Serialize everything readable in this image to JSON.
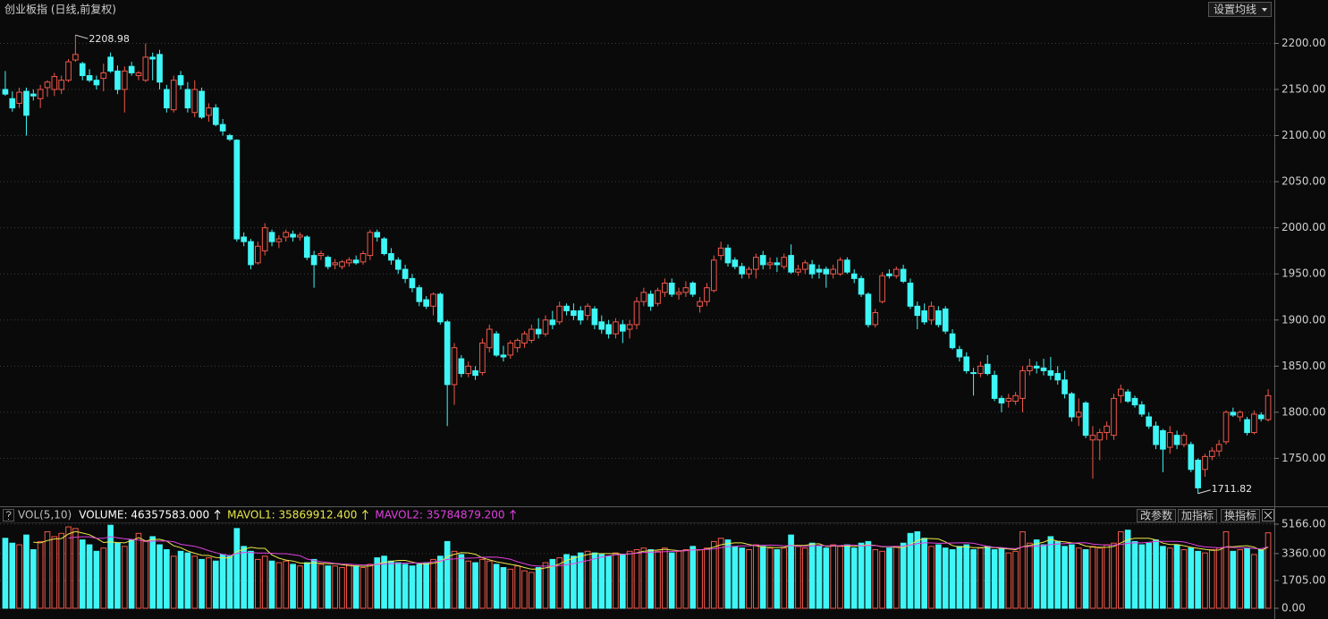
{
  "title": "创业板指 (日线,前复权)",
  "toolbar": {
    "ma_button": "设置均线",
    "buttons": [
      "改参数",
      "加指标",
      "换指标"
    ]
  },
  "chart_data": [
    {
      "type": "candlestick",
      "up_color": "#f0584a",
      "down_color": "#3ff6f6",
      "ylim": [
        1699,
        2247
      ],
      "yticks": [
        {
          "value": 1750,
          "label": "1750.00"
        },
        {
          "value": 1800,
          "label": "1800.00"
        },
        {
          "value": 1850,
          "label": "1850.00"
        },
        {
          "value": 1900,
          "label": "1900.00"
        },
        {
          "value": 1950,
          "label": "1950.00"
        },
        {
          "value": 2000,
          "label": "2000.00"
        },
        {
          "value": 2050,
          "label": "2050.00"
        },
        {
          "value": 2100,
          "label": "2100.00"
        },
        {
          "value": 2150,
          "label": "2150.00"
        },
        {
          "value": 2200,
          "label": "2200.00"
        }
      ],
      "grid": true,
      "annotations": {
        "high": "2208.98",
        "low": "1711.82"
      },
      "ohlc": [
        [
          2150,
          2170,
          2143,
          2145
        ],
        [
          2140,
          2148,
          2126,
          2130
        ],
        [
          2135,
          2152,
          2130,
          2147
        ],
        [
          2148,
          2152,
          2100,
          2122
        ],
        [
          2145,
          2150,
          2138,
          2143
        ],
        [
          2140,
          2155,
          2130,
          2150
        ],
        [
          2152,
          2160,
          2142,
          2158
        ],
        [
          2150,
          2168,
          2143,
          2164
        ],
        [
          2150,
          2165,
          2145,
          2160
        ],
        [
          2160,
          2183,
          2158,
          2180
        ],
        [
          2182,
          2208.98,
          2180,
          2188
        ],
        [
          2178,
          2180,
          2160,
          2165
        ],
        [
          2165,
          2172,
          2158,
          2160
        ],
        [
          2160,
          2165,
          2150,
          2155
        ],
        [
          2162,
          2178,
          2148,
          2168
        ],
        [
          2185,
          2190,
          2168,
          2170
        ],
        [
          2170,
          2176,
          2145,
          2150
        ],
        [
          2150,
          2175,
          2125,
          2170
        ],
        [
          2175,
          2180,
          2165,
          2168
        ],
        [
          2165,
          2170,
          2160,
          2168
        ],
        [
          2160,
          2200,
          2158,
          2185
        ],
        [
          2185,
          2190,
          2160,
          2183
        ],
        [
          2188,
          2193,
          2150,
          2158
        ],
        [
          2150,
          2155,
          2125,
          2130
        ],
        [
          2128,
          2165,
          2125,
          2160
        ],
        [
          2165,
          2170,
          2150,
          2155
        ],
        [
          2150,
          2158,
          2125,
          2130
        ],
        [
          2125,
          2160,
          2120,
          2150
        ],
        [
          2148,
          2152,
          2118,
          2120
        ],
        [
          2122,
          2135,
          2115,
          2130
        ],
        [
          2130,
          2134,
          2110,
          2112
        ],
        [
          2112,
          2118,
          2100,
          2105
        ],
        [
          2100,
          2102,
          2094,
          2096
        ],
        [
          2095,
          2096,
          1985,
          1988
        ],
        [
          1990,
          1995,
          1980,
          1985
        ],
        [
          1985,
          1988,
          1955,
          1960
        ],
        [
          1962,
          1985,
          1960,
          1980
        ],
        [
          1975,
          2005,
          1970,
          2000
        ],
        [
          1995,
          1998,
          1980,
          1985
        ],
        [
          1985,
          1992,
          1978,
          1988
        ],
        [
          1990,
          1998,
          1985,
          1995
        ],
        [
          1993,
          1997,
          1985,
          1990
        ],
        [
          1990,
          1995,
          1986,
          1992
        ],
        [
          1990,
          1992,
          1965,
          1968
        ],
        [
          1970,
          1975,
          1935,
          1960
        ],
        [
          1970,
          1975,
          1965,
          1972
        ],
        [
          1968,
          1970,
          1955,
          1958
        ],
        [
          1960,
          1966,
          1955,
          1962
        ],
        [
          1958,
          1965,
          1955,
          1963
        ],
        [
          1962,
          1968,
          1958,
          1965
        ],
        [
          1965,
          1970,
          1960,
          1962
        ],
        [
          1963,
          1975,
          1960,
          1972
        ],
        [
          1970,
          1998,
          1965,
          1995
        ],
        [
          1995,
          1998,
          1985,
          1990
        ],
        [
          1988,
          1990,
          1970,
          1972
        ],
        [
          1972,
          1978,
          1960,
          1965
        ],
        [
          1965,
          1968,
          1950,
          1955
        ],
        [
          1955,
          1960,
          1940,
          1945
        ],
        [
          1945,
          1950,
          1930,
          1935
        ],
        [
          1935,
          1938,
          1915,
          1920
        ],
        [
          1922,
          1926,
          1912,
          1915
        ],
        [
          1915,
          1930,
          1905,
          1928
        ],
        [
          1928,
          1930,
          1895,
          1898
        ],
        [
          1898,
          1900,
          1785,
          1830
        ],
        [
          1830,
          1875,
          1808,
          1870
        ],
        [
          1858,
          1862,
          1838,
          1842
        ],
        [
          1842,
          1855,
          1838,
          1850
        ],
        [
          1845,
          1850,
          1835,
          1840
        ],
        [
          1843,
          1880,
          1840,
          1875
        ],
        [
          1870,
          1895,
          1865,
          1890
        ],
        [
          1885,
          1888,
          1860,
          1862
        ],
        [
          1862,
          1872,
          1855,
          1860
        ],
        [
          1862,
          1878,
          1858,
          1875
        ],
        [
          1870,
          1880,
          1865,
          1878
        ],
        [
          1875,
          1888,
          1870,
          1885
        ],
        [
          1878,
          1895,
          1875,
          1890
        ],
        [
          1890,
          1902,
          1880,
          1885
        ],
        [
          1885,
          1905,
          1882,
          1900
        ],
        [
          1900,
          1910,
          1890,
          1895
        ],
        [
          1898,
          1920,
          1895,
          1915
        ],
        [
          1915,
          1918,
          1905,
          1910
        ],
        [
          1910,
          1918,
          1900,
          1905
        ],
        [
          1910,
          1915,
          1895,
          1900
        ],
        [
          1905,
          1918,
          1900,
          1915
        ],
        [
          1912,
          1915,
          1890,
          1895
        ],
        [
          1898,
          1905,
          1885,
          1890
        ],
        [
          1895,
          1900,
          1880,
          1885
        ],
        [
          1885,
          1902,
          1880,
          1898
        ],
        [
          1895,
          1900,
          1875,
          1888
        ],
        [
          1890,
          1900,
          1880,
          1895
        ],
        [
          1895,
          1925,
          1890,
          1920
        ],
        [
          1920,
          1935,
          1915,
          1930
        ],
        [
          1928,
          1932,
          1910,
          1915
        ],
        [
          1918,
          1935,
          1915,
          1932
        ],
        [
          1930,
          1945,
          1925,
          1940
        ],
        [
          1940,
          1945,
          1925,
          1928
        ],
        [
          1928,
          1935,
          1922,
          1930
        ],
        [
          1930,
          1942,
          1925,
          1935
        ],
        [
          1940,
          1942,
          1925,
          1928
        ],
        [
          1915,
          1925,
          1908,
          1920
        ],
        [
          1920,
          1940,
          1915,
          1935
        ],
        [
          1932,
          1970,
          1930,
          1965
        ],
        [
          1970,
          1985,
          1965,
          1978
        ],
        [
          1978,
          1982,
          1958,
          1962
        ],
        [
          1965,
          1968,
          1955,
          1958
        ],
        [
          1958,
          1962,
          1945,
          1950
        ],
        [
          1950,
          1958,
          1945,
          1955
        ],
        [
          1955,
          1972,
          1945,
          1968
        ],
        [
          1970,
          1975,
          1955,
          1960
        ],
        [
          1960,
          1968,
          1955,
          1962
        ],
        [
          1962,
          1968,
          1952,
          1960
        ],
        [
          1958,
          1972,
          1955,
          1968
        ],
        [
          1970,
          1982,
          1950,
          1952
        ],
        [
          1952,
          1960,
          1948,
          1955
        ],
        [
          1955,
          1965,
          1950,
          1962
        ],
        [
          1960,
          1965,
          1945,
          1950
        ],
        [
          1955,
          1960,
          1945,
          1952
        ],
        [
          1955,
          1958,
          1935,
          1950
        ],
        [
          1950,
          1960,
          1945,
          1955
        ],
        [
          1950,
          1968,
          1948,
          1965
        ],
        [
          1965,
          1968,
          1950,
          1952
        ],
        [
          1950,
          1955,
          1940,
          1945
        ],
        [
          1945,
          1948,
          1925,
          1928
        ],
        [
          1928,
          1930,
          1892,
          1895
        ],
        [
          1895,
          1912,
          1892,
          1908
        ],
        [
          1920,
          1952,
          1918,
          1948
        ],
        [
          1950,
          1955,
          1945,
          1948
        ],
        [
          1948,
          1958,
          1945,
          1955
        ],
        [
          1955,
          1960,
          1940,
          1942
        ],
        [
          1940,
          1945,
          1912,
          1915
        ],
        [
          1915,
          1920,
          1890,
          1905
        ],
        [
          1910,
          1918,
          1895,
          1898
        ],
        [
          1900,
          1920,
          1895,
          1915
        ],
        [
          1910,
          1915,
          1892,
          1895
        ],
        [
          1912,
          1915,
          1885,
          1888
        ],
        [
          1885,
          1890,
          1868,
          1870
        ],
        [
          1868,
          1872,
          1855,
          1860
        ],
        [
          1860,
          1865,
          1842,
          1845
        ],
        [
          1843,
          1848,
          1818,
          1842
        ],
        [
          1842,
          1855,
          1838,
          1850
        ],
        [
          1852,
          1862,
          1840,
          1842
        ],
        [
          1840,
          1845,
          1812,
          1815
        ],
        [
          1815,
          1818,
          1800,
          1810
        ],
        [
          1812,
          1820,
          1805,
          1815
        ],
        [
          1812,
          1822,
          1808,
          1818
        ],
        [
          1815,
          1850,
          1800,
          1845
        ],
        [
          1845,
          1858,
          1840,
          1850
        ],
        [
          1850,
          1855,
          1842,
          1848
        ],
        [
          1848,
          1858,
          1840,
          1845
        ],
        [
          1845,
          1860,
          1835,
          1840
        ],
        [
          1842,
          1850,
          1830,
          1835
        ],
        [
          1835,
          1845,
          1815,
          1820
        ],
        [
          1820,
          1822,
          1790,
          1795
        ],
        [
          1795,
          1815,
          1785,
          1800
        ],
        [
          1810,
          1812,
          1772,
          1775
        ],
        [
          1770,
          1785,
          1728,
          1775
        ],
        [
          1770,
          1782,
          1748,
          1778
        ],
        [
          1778,
          1790,
          1770,
          1785
        ],
        [
          1775,
          1820,
          1770,
          1815
        ],
        [
          1818,
          1830,
          1810,
          1825
        ],
        [
          1822,
          1825,
          1810,
          1812
        ],
        [
          1815,
          1818,
          1805,
          1808
        ],
        [
          1808,
          1812,
          1795,
          1798
        ],
        [
          1795,
          1800,
          1782,
          1785
        ],
        [
          1785,
          1790,
          1760,
          1765
        ],
        [
          1780,
          1782,
          1735,
          1760
        ],
        [
          1762,
          1785,
          1755,
          1778
        ],
        [
          1775,
          1780,
          1760,
          1765
        ],
        [
          1765,
          1778,
          1762,
          1775
        ],
        [
          1765,
          1768,
          1735,
          1738
        ],
        [
          1748,
          1750,
          1711.82,
          1718
        ],
        [
          1738,
          1755,
          1730,
          1752
        ],
        [
          1752,
          1762,
          1748,
          1758
        ],
        [
          1758,
          1770,
          1752,
          1765
        ],
        [
          1768,
          1802,
          1765,
          1800
        ],
        [
          1800,
          1805,
          1795,
          1797
        ],
        [
          1795,
          1802,
          1790,
          1800
        ],
        [
          1792,
          1795,
          1775,
          1778
        ],
        [
          1778,
          1802,
          1776,
          1798
        ],
        [
          1797,
          1800,
          1790,
          1793
        ],
        [
          1792,
          1825,
          1790,
          1818
        ]
      ]
    },
    {
      "type": "volume",
      "title": "VOL(5,10)",
      "ma_periods": [
        5,
        10
      ],
      "ma_colors": [
        "#e8e84a",
        "#e040e0"
      ],
      "legend": [
        {
          "label": "VOLUME: 46357583.000",
          "color": "#ffffff"
        },
        {
          "label": "MAVOL1: 35869912.400",
          "color": "#e8e84a"
        },
        {
          "label": "MAVOL2: 35784879.200",
          "color": "#e040e0"
        }
      ],
      "ylim": [
        0,
        5276
      ],
      "yticks": [
        {
          "value": 0,
          "label": "0.00"
        },
        {
          "value": 1705,
          "label": "1705.00"
        },
        {
          "value": 3360,
          "label": "3360.00"
        },
        {
          "value": 5166,
          "label": "5166.00"
        }
      ],
      "values": [
        4300,
        4000,
        3900,
        4500,
        3600,
        4100,
        4700,
        4400,
        4600,
        5000,
        4900,
        4200,
        3900,
        3500,
        3700,
        5100,
        4000,
        3800,
        4200,
        4600,
        4100,
        4400,
        3900,
        3600,
        3200,
        3500,
        3400,
        3200,
        3000,
        3100,
        2900,
        3300,
        3200,
        4900,
        3800,
        3500,
        3000,
        3200,
        2900,
        2800,
        2900,
        2700,
        2600,
        2800,
        3000,
        2700,
        2600,
        2600,
        2500,
        2700,
        2600,
        2500,
        2700,
        3100,
        3200,
        2900,
        2800,
        2700,
        2600,
        2700,
        2800,
        3000,
        3200,
        4100,
        3500,
        3300,
        2900,
        2800,
        3000,
        2900,
        2700,
        2500,
        2400,
        2600,
        2300,
        2200,
        2500,
        2800,
        3000,
        3100,
        3300,
        3200,
        3400,
        3500,
        3400,
        3300,
        3200,
        3400,
        3300,
        3500,
        3600,
        3700,
        3600,
        3500,
        3700,
        3400,
        3500,
        3600,
        3800,
        3600,
        3700,
        4100,
        4300,
        4200,
        3800,
        3700,
        3600,
        3900,
        3800,
        3700,
        3600,
        3700,
        4500,
        3800,
        3700,
        4000,
        3800,
        3700,
        3900,
        3800,
        3900,
        3700,
        4000,
        4100,
        3600,
        3500,
        3700,
        3800,
        4000,
        4600,
        4700,
        4300,
        3800,
        3900,
        3700,
        3600,
        3800,
        3900,
        3600,
        3700,
        3800,
        3600,
        3700,
        3400,
        3500,
        4700,
        4000,
        4200,
        3900,
        4400,
        4100,
        3800,
        3900,
        3700,
        3600,
        3800,
        3700,
        3900,
        4000,
        4700,
        4800,
        4100,
        3900,
        4000,
        4200,
        3800,
        3700,
        3900,
        3600,
        3700,
        3500,
        3400,
        3600,
        3700,
        4700,
        3500,
        3600,
        3700,
        3300,
        3600,
        4636
      ]
    }
  ]
}
